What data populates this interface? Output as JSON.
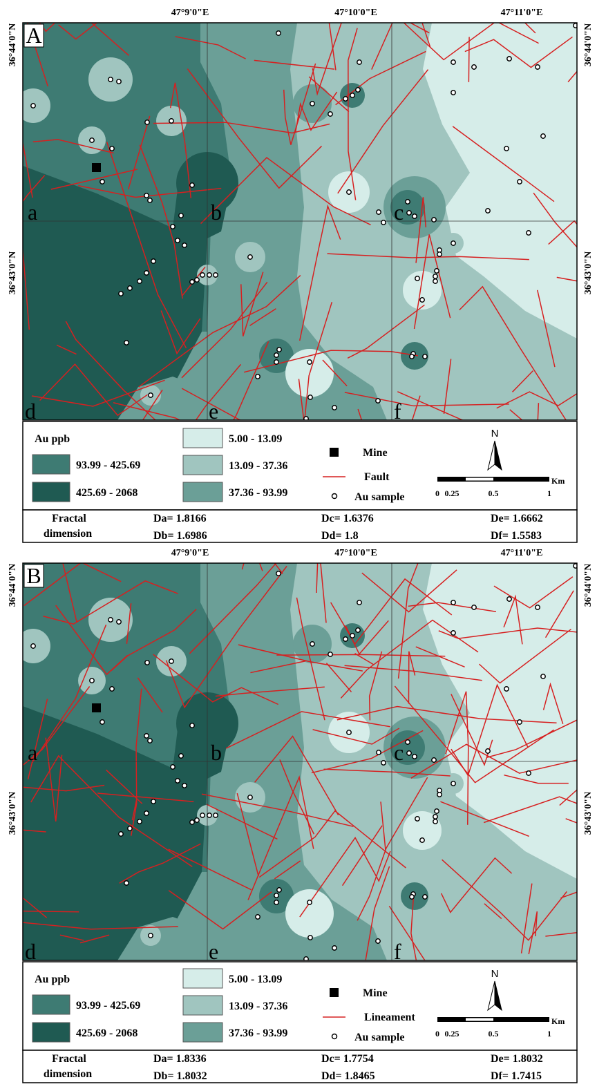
{
  "panels": [
    {
      "label": "A",
      "lon_labels": [
        "47°9'0\"E",
        "47°10'0\"E",
        "47°11'0\"E"
      ],
      "lat_labels": [
        "36°44'0\"N",
        "36°43'0\"N"
      ],
      "cells": [
        "a",
        "b",
        "c",
        "d",
        "e",
        "f"
      ],
      "legend": {
        "title": "Au ppb",
        "classes": [
          "93.99 - 425.69",
          "425.69 - 2068",
          "5.00 - 13.09",
          "13.09 - 37.36",
          "37.36 - 93.99"
        ],
        "mine": "Mine",
        "line": "Fault",
        "sample": "Au sample"
      },
      "north": "N",
      "scale": {
        "unit": "Km",
        "ticks": [
          0,
          0.25,
          0.5,
          1
        ]
      },
      "fractal": {
        "title": [
          "Fractal",
          "dimension"
        ],
        "values": [
          "Da= 1.8166",
          "Db= 1.6986",
          "Dc= 1.6376",
          "Dd= 1.8",
          "De= 1.6662",
          "Df= 1.5583"
        ]
      }
    },
    {
      "label": "B",
      "lon_labels": [
        "47°9'0\"E",
        "47°10'0\"E",
        "47°11'0\"E"
      ],
      "lat_labels": [
        "36°44'0\"N",
        "36°43'0\"N"
      ],
      "cells": [
        "a",
        "b",
        "c",
        "d",
        "e",
        "f"
      ],
      "legend": {
        "title": "Au ppb",
        "classes": [
          "93.99 - 425.69",
          "425.69 - 2068",
          "5.00 - 13.09",
          "13.09 - 37.36",
          "37.36 - 93.99"
        ],
        "mine": "Mine",
        "line": "Lineament",
        "sample": "Au sample"
      },
      "north": "N",
      "scale": {
        "unit": "Km",
        "ticks": [
          0,
          0.25,
          0.5,
          1
        ]
      },
      "fractal": {
        "title": [
          "Fractal",
          "dimension"
        ],
        "values": [
          "Da= 1.8336",
          "Db= 1.8032",
          "Dc= 1.7754",
          "Dd= 1.8465",
          "De= 1.8032",
          "Df= 1.7415"
        ]
      }
    }
  ]
}
